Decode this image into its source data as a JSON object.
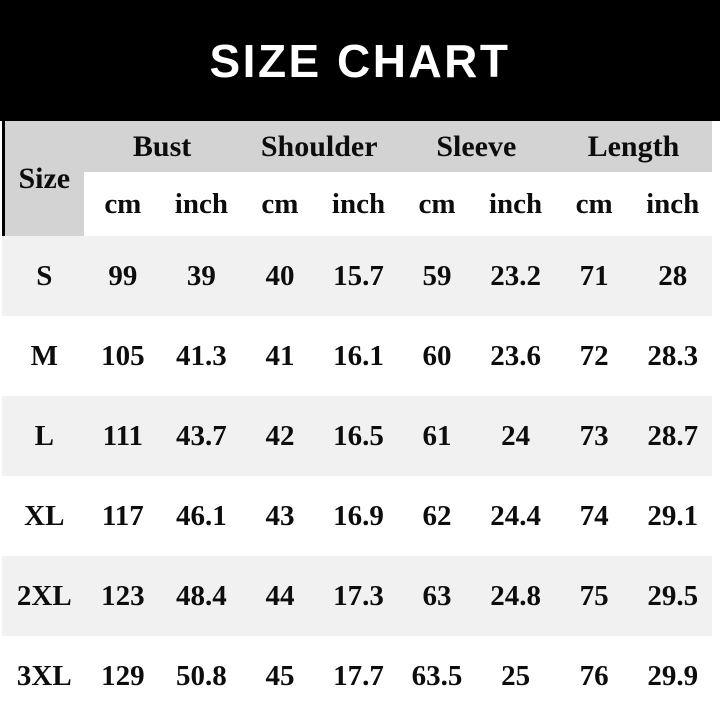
{
  "title": "SIZE CHART",
  "table_header": {
    "size": "Size",
    "units": [
      "cm",
      "inch",
      "cm",
      "inch",
      "cm",
      "inch",
      "cm",
      "inch"
    ]
  },
  "colors": {
    "bar_bg": "#000000",
    "title_color": "#ffffff",
    "header_bg": "#d3d3d3",
    "stripe_bg": "#f1f1f1",
    "text_color": "#0d0d0d"
  },
  "chart_data": {
    "type": "table",
    "title": "SIZE CHART",
    "column_groups": [
      "Bust",
      "Shoulder",
      "Sleeve",
      "Length"
    ],
    "columns": [
      "Size",
      "Bust cm",
      "Bust inch",
      "Shoulder cm",
      "Shoulder inch",
      "Sleeve cm",
      "Sleeve inch",
      "Length cm",
      "Length inch"
    ],
    "rows": [
      [
        "S",
        99,
        39,
        40,
        15.7,
        59,
        23.2,
        71,
        28
      ],
      [
        "M",
        105,
        41.3,
        41,
        16.1,
        60,
        23.6,
        72,
        28.3
      ],
      [
        "L",
        111,
        43.7,
        42,
        16.5,
        61,
        24,
        73,
        28.7
      ],
      [
        "XL",
        117,
        46.1,
        43,
        16.9,
        62,
        24.4,
        74,
        29.1
      ],
      [
        "2XL",
        123,
        48.4,
        44,
        17.3,
        63,
        24.8,
        75,
        29.5
      ],
      [
        "3XL",
        129,
        50.8,
        45,
        17.7,
        63.5,
        25,
        76,
        29.9
      ]
    ]
  }
}
